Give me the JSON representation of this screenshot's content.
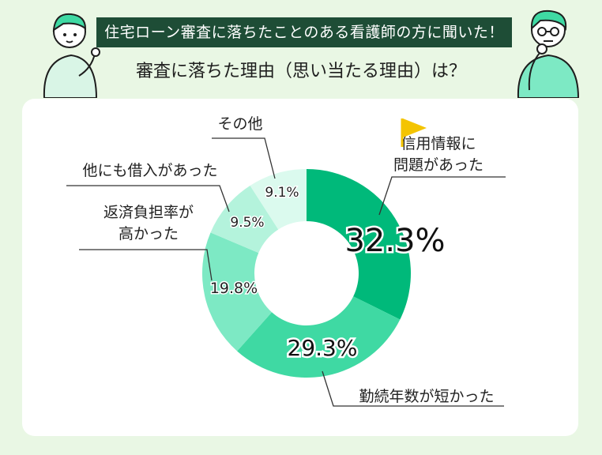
{
  "banner": {
    "text": "住宅ローン審査に落ちたことのある看護師の方に聞いた！"
  },
  "subtitle": {
    "text": "審査に落ちた理由（思い当たる理由）は？"
  },
  "chart_data": {
    "type": "pie",
    "title": "",
    "slices": [
      {
        "label_lines": [
          "信用情報に",
          "問題があった"
        ],
        "value": 32.3,
        "value_text": "32.3%",
        "color": "#00b97a"
      },
      {
        "label_lines": [
          "勤続年数が短かった"
        ],
        "value": 29.3,
        "value_text": "29.3%",
        "color": "#3fd9a3"
      },
      {
        "label_lines": [
          "返済負担率が",
          "高かった"
        ],
        "value": 19.8,
        "value_text": "19.8%",
        "color": "#7de9c4"
      },
      {
        "label_lines": [
          "他にも借入があった"
        ],
        "value": 9.5,
        "value_text": "9.5%",
        "color": "#b4f3dc"
      },
      {
        "label_lines": [
          "その他"
        ],
        "value": 9.1,
        "value_text": "9.1%",
        "color": "#dbfaee"
      }
    ],
    "colors": {
      "flag": "#f4c400",
      "banner_bg": "#1e4d36",
      "background": "#e9f7e4"
    }
  }
}
